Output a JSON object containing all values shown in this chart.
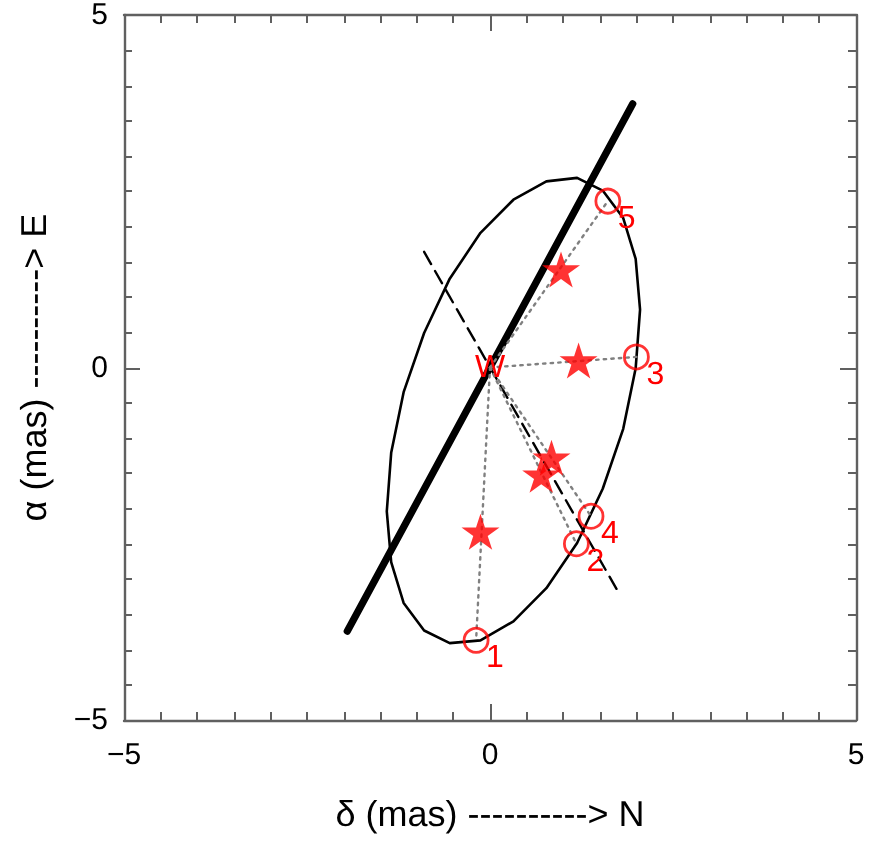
{
  "chart_data": {
    "type": "scatter",
    "xlabel": "δ (mas) ----------> N",
    "ylabel": "α (mas) ----------> E",
    "xlim": [
      -5,
      5
    ],
    "ylim": [
      -5,
      5
    ],
    "xticks": [
      {
        "value": -5,
        "label": "−5"
      },
      {
        "value": -4.5,
        "label": null
      },
      {
        "value": -4,
        "label": null
      },
      {
        "value": -3.5,
        "label": null
      },
      {
        "value": -3,
        "label": null
      },
      {
        "value": -2.5,
        "label": null
      },
      {
        "value": -2,
        "label": null
      },
      {
        "value": -1.5,
        "label": null
      },
      {
        "value": -1,
        "label": null
      },
      {
        "value": -0.5,
        "label": null
      },
      0,
      {
        "value": 0.5,
        "label": null
      },
      {
        "value": 1,
        "label": null
      },
      {
        "value": 1.5,
        "label": null
      },
      {
        "value": 2,
        "label": null
      },
      {
        "value": 2.5,
        "label": null
      },
      {
        "value": 3,
        "label": null
      },
      {
        "value": 3.5,
        "label": null
      },
      {
        "value": 4,
        "label": null
      },
      {
        "value": 4.5,
        "label": null
      },
      5
    ],
    "yticks": [
      {
        "value": -5,
        "label": "−5"
      },
      {
        "value": -4.5,
        "label": null
      },
      {
        "value": -4,
        "label": null
      },
      {
        "value": -3.5,
        "label": null
      },
      {
        "value": -3,
        "label": null
      },
      {
        "value": -2.5,
        "label": null
      },
      {
        "value": -2,
        "label": null
      },
      {
        "value": -1.5,
        "label": null
      },
      {
        "value": -1,
        "label": null
      },
      {
        "value": -0.5,
        "label": null
      },
      0,
      {
        "value": 0.5,
        "label": null
      },
      {
        "value": 1,
        "label": null
      },
      {
        "value": 1.5,
        "label": null
      },
      {
        "value": 2,
        "label": null
      },
      {
        "value": 2.5,
        "label": null
      },
      {
        "value": 3,
        "label": null
      },
      {
        "value": 3.5,
        "label": null
      },
      {
        "value": 4,
        "label": null
      },
      {
        "value": 4.5,
        "label": null
      },
      5
    ],
    "series": [
      {
        "type": "line",
        "color": "#000000",
        "marker": "none",
        "line_style": "solid",
        "x": [
          2.05,
          1.99,
          1.82,
          1.54,
          1.19,
          0.77,
          0.32,
          -0.13,
          -0.55,
          -0.9,
          -1.18,
          -1.35,
          -1.41,
          -1.35,
          -1.18,
          -0.9,
          -0.55,
          -0.13,
          0.32,
          0.77,
          1.19,
          1.54,
          1.82,
          1.99,
          2.05,
          1.99
        ],
        "values": [
          0.82,
          1.54,
          2.12,
          2.51,
          2.69,
          2.64,
          2.38,
          1.91,
          1.26,
          0.49,
          -0.35,
          -1.21,
          -2.04,
          -2.76,
          -3.34,
          -3.73,
          -3.91,
          -3.87,
          -3.6,
          -3.13,
          -2.49,
          -1.72,
          -0.87,
          -0.01,
          0.82,
          1.54
        ]
      },
      {
        "type": "line",
        "color": "#000000",
        "marker": "none",
        "line_style": "solid",
        "x": [
          -1.95,
          1.95
        ],
        "values": [
          -3.74,
          3.74
        ]
      },
      {
        "type": "line",
        "color": "#000000",
        "marker": "none",
        "line_style": "dashed",
        "x": [
          -0.9,
          1.75
        ],
        "values": [
          1.64,
          -3.18
        ]
      },
      {
        "type": "line",
        "color": "#808080",
        "marker": "none",
        "line_style": "dotted",
        "x": [
          0,
          -0.19
        ],
        "values": [
          0,
          -3.87
        ]
      },
      {
        "type": "line",
        "color": "#808080",
        "marker": "none",
        "line_style": "dotted",
        "x": [
          0,
          1.18
        ],
        "values": [
          0,
          -2.5
        ]
      },
      {
        "type": "line",
        "color": "#808080",
        "marker": "none",
        "line_style": "dotted",
        "x": [
          0,
          2.0
        ],
        "values": [
          0,
          0.15
        ]
      },
      {
        "type": "line",
        "color": "#808080",
        "marker": "none",
        "line_style": "dotted",
        "x": [
          0,
          1.38
        ],
        "values": [
          0,
          -2.11
        ]
      },
      {
        "type": "line",
        "color": "#808080",
        "marker": "none",
        "line_style": "dotted",
        "x": [
          0,
          1.61
        ],
        "values": [
          0,
          2.36
        ]
      },
      {
        "color": "#ff0000",
        "marker": "star",
        "x": [
          -0.13,
          0.7,
          1.21,
          0.84,
          0.97
        ],
        "values": [
          -2.33,
          -1.52,
          0.1,
          -1.28,
          1.39
        ]
      },
      {
        "color": "#ff0000",
        "marker": "circle",
        "x": [
          -0.19,
          1.18,
          2.0,
          1.38,
          1.61
        ],
        "values": [
          -3.87,
          -2.5,
          0.15,
          -2.11,
          2.36
        ]
      }
    ],
    "annotations": [
      {
        "text": "W",
        "x": 0,
        "y": 0
      },
      {
        "text": "1",
        "x": -0.19,
        "y": -3.87
      },
      {
        "text": "2",
        "x": 1.18,
        "y": -2.5
      },
      {
        "text": "3",
        "x": 2.0,
        "y": 0.15
      },
      {
        "text": "4",
        "x": 1.38,
        "y": -2.11
      },
      {
        "text": "5",
        "x": 1.61,
        "y": 2.36
      }
    ]
  }
}
